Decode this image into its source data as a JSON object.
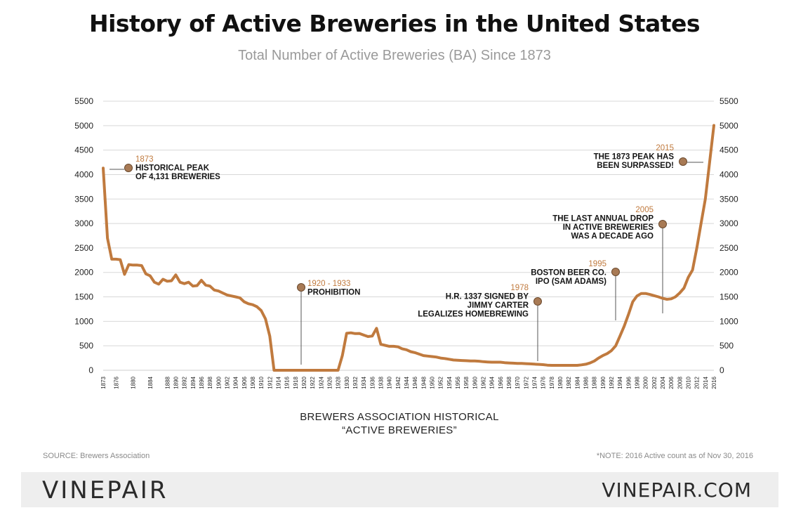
{
  "chart_data": {
    "type": "line",
    "title": "History of Active Breweries in the United States",
    "subtitle": "Total Number of Active Breweries (BA) Since 1873",
    "xlabel_lines": [
      "BREWERS ASSOCIATION HISTORICAL",
      "“ACTIVE BREWERIES”"
    ],
    "ylim": [
      0,
      5500
    ],
    "yticks": [
      0,
      500,
      1000,
      1500,
      2000,
      2500,
      3000,
      3500,
      4000,
      4500,
      5000,
      5500
    ],
    "xlim": [
      1873,
      2016
    ],
    "grid": true,
    "line_color": "#c07a3e",
    "series": [
      {
        "x": [
          1873,
          1874,
          1875,
          1876,
          1877,
          1878,
          1879,
          1880,
          1881,
          1882,
          1883,
          1884,
          1885,
          1886,
          1887,
          1888,
          1889,
          1890,
          1891,
          1892,
          1893,
          1894,
          1895,
          1896,
          1897,
          1898,
          1899,
          1900,
          1901,
          1902,
          1903,
          1904,
          1905,
          1906,
          1907,
          1908,
          1909,
          1910,
          1911,
          1912,
          1913,
          1914,
          1915,
          1916,
          1917,
          1918,
          1919,
          1920,
          1921,
          1922,
          1923,
          1924,
          1925,
          1926,
          1927,
          1928,
          1929,
          1930,
          1931,
          1932,
          1933,
          1934,
          1935,
          1936,
          1937,
          1938,
          1939,
          1940,
          1941,
          1942,
          1943,
          1944,
          1945,
          1946,
          1947,
          1948,
          1949,
          1950,
          1951,
          1952,
          1953,
          1954,
          1955,
          1956,
          1957,
          1958,
          1959,
          1960,
          1961,
          1962,
          1963,
          1964,
          1965,
          1966,
          1967,
          1968,
          1969,
          1970,
          1971,
          1972,
          1973,
          1974,
          1975,
          1976,
          1977,
          1978,
          1979,
          1980,
          1981,
          1982,
          1983,
          1984,
          1985,
          1986,
          1987,
          1988,
          1989,
          1990,
          1991,
          1992,
          1993,
          1994,
          1995,
          1996,
          1997,
          1998,
          1999,
          2000,
          2001,
          2002,
          2003,
          2004,
          2005,
          2006,
          2007,
          2008,
          2009,
          2010,
          2011,
          2012,
          2013,
          2014,
          2015,
          2016
        ],
        "values": [
          4131,
          2700,
          2270,
          2270,
          2260,
          1960,
          2160,
          2150,
          2150,
          2140,
          1970,
          1930,
          1800,
          1760,
          1860,
          1820,
          1830,
          1950,
          1800,
          1770,
          1800,
          1720,
          1730,
          1840,
          1740,
          1720,
          1640,
          1620,
          1580,
          1540,
          1520,
          1500,
          1480,
          1400,
          1360,
          1340,
          1300,
          1220,
          1050,
          700,
          0,
          0,
          0,
          0,
          0,
          0,
          0,
          0,
          0,
          0,
          0,
          0,
          0,
          0,
          0,
          0,
          300,
          756,
          766,
          750,
          752,
          720,
          690,
          700,
          858,
          530,
          510,
          490,
          490,
          480,
          440,
          420,
          380,
          360,
          330,
          300,
          290,
          280,
          270,
          250,
          240,
          225,
          210,
          205,
          200,
          195,
          190,
          190,
          185,
          175,
          170,
          165,
          165,
          165,
          155,
          150,
          145,
          140,
          140,
          135,
          130,
          125,
          120,
          115,
          105,
          100,
          100,
          100,
          100,
          100,
          100,
          100,
          110,
          124,
          150,
          190,
          250,
          300,
          340,
          400,
          500,
          700,
          900,
          1140,
          1400,
          1520,
          1570,
          1570,
          1550,
          1525,
          1500,
          1470,
          1450,
          1460,
          1500,
          1580,
          1680,
          1900,
          2050,
          2500,
          3000,
          3500,
          4250,
          5005
        ]
      }
    ],
    "x_tick_labels": [
      "1873",
      "1876",
      "1880",
      "1884",
      "1888",
      "1890",
      "1892",
      "1894",
      "1896",
      "1898",
      "1900",
      "1902",
      "1904",
      "1906",
      "1908",
      "1910",
      "1912",
      "1914",
      "1916",
      "1918",
      "1920",
      "1922",
      "1924",
      "1926",
      "1928",
      "1930",
      "1932",
      "1934",
      "1936",
      "1938",
      "1940",
      "1942",
      "1944",
      "1946",
      "1948",
      "1950",
      "1952",
      "1954",
      "1956",
      "1958",
      "1960",
      "1962",
      "1964",
      "1966",
      "1968",
      "1970",
      "1972",
      "1974",
      "1976",
      "1978",
      "1980",
      "1982",
      "1984",
      "1986",
      "1988",
      "1990",
      "1992",
      "1994",
      "1996",
      "1998",
      "2000",
      "2002",
      "2004",
      "2006",
      "2008",
      "2010",
      "2012",
      "2014",
      "2016"
    ],
    "annotations": [
      {
        "year_label": "1873",
        "lines": [
          "HISTORICAL PEAK",
          "OF 4,131 BREWERIES"
        ]
      },
      {
        "year_label": "1920 - 1933",
        "lines": [
          "PROHIBITION"
        ]
      },
      {
        "year_label": "1978",
        "lines": [
          "H.R. 1337 SIGNED BY",
          "JIMMY CARTER",
          "LEGALIZES HOMEBREWING"
        ]
      },
      {
        "year_label": "1995",
        "lines": [
          "BOSTON BEER CO.",
          "IPO (SAM ADAMS)"
        ]
      },
      {
        "year_label": "2005",
        "lines": [
          "THE LAST ANNUAL DROP",
          "IN ACTIVE BREWERIES",
          "WAS A DECADE AGO"
        ]
      },
      {
        "year_label": "2015",
        "lines": [
          "THE 1873 PEAK HAS",
          "BEEN SURPASSED!"
        ]
      }
    ]
  },
  "footer": {
    "source": "SOURCE: Brewers Association",
    "note": "*NOTE: 2016 Active count as of Nov 30, 2016",
    "logo": "VINEPAIR",
    "site": "VINEPAIR.COM"
  },
  "colors": {
    "accent": "#c07a3e",
    "marker": "#a87a55",
    "grid": "#d8d8d8",
    "footer_bg": "#eeeeee"
  }
}
